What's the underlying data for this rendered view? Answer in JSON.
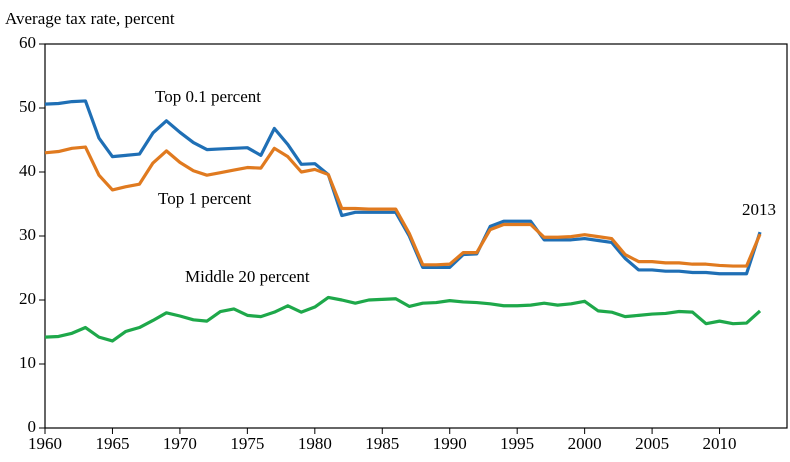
{
  "chart_data": {
    "type": "line",
    "y_label": "Average tax rate, percent",
    "annotations": [
      "Top 0.1 percent",
      "Top 1 percent",
      "Middle 20 percent",
      "2013"
    ],
    "x": [
      1960,
      1961,
      1962,
      1963,
      1964,
      1965,
      1966,
      1967,
      1968,
      1969,
      1970,
      1971,
      1972,
      1973,
      1974,
      1975,
      1976,
      1977,
      1978,
      1979,
      1980,
      1981,
      1982,
      1983,
      1984,
      1985,
      1986,
      1987,
      1988,
      1989,
      1990,
      1991,
      1992,
      1993,
      1994,
      1995,
      1996,
      1997,
      1998,
      1999,
      2000,
      2001,
      2002,
      2003,
      2004,
      2005,
      2006,
      2007,
      2008,
      2009,
      2010,
      2011,
      2012,
      2013
    ],
    "series": [
      {
        "name": "Top 0.1 percent",
        "color": "#1f6fb5",
        "values": [
          50.6,
          50.7,
          51,
          51.1,
          45.3,
          42.4,
          42.6,
          42.8,
          46.1,
          48,
          46.2,
          44.6,
          43.5,
          43.6,
          43.7,
          43.8,
          42.6,
          46.8,
          44.3,
          41.2,
          41.3,
          39.6,
          33.2,
          33.7,
          33.7,
          33.7,
          33.7,
          30,
          25.1,
          25.1,
          25.1,
          27.1,
          27.2,
          31.5,
          32.3,
          32.3,
          32.3,
          29.4,
          29.4,
          29.4,
          29.6,
          29.3,
          29,
          26.5,
          24.7,
          24.7,
          24.5,
          24.5,
          24.3,
          24.3,
          24.1,
          24.1,
          24.1,
          30.6
        ]
      },
      {
        "name": "Top 1 percent",
        "color": "#e07a1f",
        "values": [
          43,
          43.2,
          43.7,
          43.9,
          39.5,
          37.2,
          37.7,
          38.1,
          41.4,
          43.3,
          41.5,
          40.2,
          39.5,
          39.9,
          40.3,
          40.7,
          40.6,
          43.7,
          42.4,
          40,
          40.4,
          39.6,
          34.3,
          34.3,
          34.2,
          34.2,
          34.2,
          30.4,
          25.5,
          25.5,
          25.6,
          27.4,
          27.4,
          31,
          31.8,
          31.8,
          31.8,
          29.8,
          29.8,
          29.9,
          30.2,
          29.9,
          29.6,
          27.1,
          26,
          26,
          25.8,
          25.8,
          25.6,
          25.6,
          25.4,
          25.3,
          25.3,
          30.3
        ]
      },
      {
        "name": "Middle 20 percent",
        "color": "#1ea84a",
        "values": [
          14.2,
          14.3,
          14.8,
          15.7,
          14.2,
          13.6,
          15.1,
          15.7,
          16.8,
          18,
          17.5,
          16.9,
          16.7,
          18.2,
          18.6,
          17.6,
          17.4,
          18.1,
          19.1,
          18.1,
          18.9,
          20.4,
          20,
          19.5,
          20,
          20.1,
          20.2,
          19,
          19.5,
          19.6,
          19.9,
          19.7,
          19.6,
          19.4,
          19.1,
          19.1,
          19.2,
          19.5,
          19.2,
          19.4,
          19.8,
          18.3,
          18.1,
          17.4,
          17.6,
          17.8,
          17.9,
          18.2,
          18.1,
          16.3,
          16.7,
          16.3,
          16.4,
          18.3
        ]
      }
    ],
    "xlim": [
      1960,
      2015
    ],
    "xticks": [
      1960,
      1965,
      1970,
      1975,
      1980,
      1985,
      1990,
      1995,
      2000,
      2005,
      2010
    ],
    "ylim": [
      0,
      60
    ],
    "yticks": [
      0,
      10,
      20,
      30,
      40,
      50,
      60
    ],
    "grid": false
  }
}
